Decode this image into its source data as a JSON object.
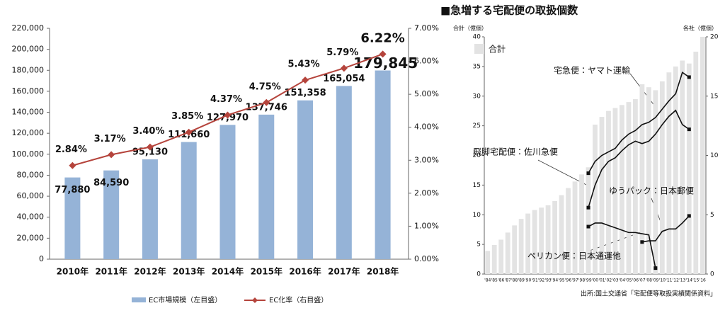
{
  "chart_data": [
    {
      "type": "bar",
      "categories": [
        "2010年",
        "2011年",
        "2012年",
        "2013年",
        "2014年",
        "2015年",
        "2016年",
        "2017年",
        "2018年"
      ],
      "series": [
        {
          "name": "EC市場規模（左目盛）",
          "color": "#95b3d7",
          "type": "bar",
          "values": [
            77880,
            84590,
            95130,
            111660,
            127970,
            137746,
            151358,
            165054,
            179845
          ],
          "value_labels": [
            "77,880",
            "84,590",
            "95,130",
            "111,660",
            "127,970",
            "137,746",
            "151,358",
            "165,054",
            "179,845"
          ]
        },
        {
          "name": "EC化率（右目盛）",
          "color": "#b5443c",
          "type": "line",
          "axis": "y2",
          "values": [
            2.84,
            3.17,
            3.4,
            3.85,
            4.37,
            4.75,
            5.43,
            5.79,
            6.22
          ],
          "value_labels": [
            "2.84%",
            "3.17%",
            "3.40%",
            "3.85%",
            "4.37%",
            "4.75%",
            "5.43%",
            "5.79%",
            "6.22%"
          ]
        }
      ],
      "ylim": [
        0,
        220000
      ],
      "yticks": [
        0,
        {
          "value": 20000,
          "label": "20,000"
        },
        {
          "value": 40000,
          "label": "40,000"
        },
        {
          "value": 60000,
          "label": "60,000"
        },
        {
          "value": 80000,
          "label": "80,000"
        },
        {
          "value": 100000,
          "label": "100,000"
        },
        {
          "value": 120000,
          "label": "120,000"
        },
        {
          "value": 140000,
          "label": "140,000"
        },
        {
          "value": 160000,
          "label": "160,000"
        },
        {
          "value": 180000,
          "label": "180,000"
        },
        {
          "value": 200000,
          "label": "200,000"
        },
        {
          "value": 220000,
          "label": "220,000"
        }
      ],
      "y2lim": [
        0,
        7
      ],
      "y2ticks": [
        {
          "value": 0,
          "label": "0.00%"
        },
        {
          "value": 1,
          "label": "1.00%"
        },
        {
          "value": 2,
          "label": "2.00%"
        },
        {
          "value": 3,
          "label": "3.00%"
        },
        {
          "value": 4,
          "label": "4.00%"
        },
        {
          "value": 5,
          "label": "5.00%"
        },
        {
          "value": 6,
          "label": "6.00%"
        },
        {
          "value": 7,
          "label": "7.00%"
        }
      ],
      "legend": "bottom",
      "grid": false
    },
    {
      "type": "bar",
      "title": "■急増する宅配便の取扱個数",
      "ylabel": "合計（億個）",
      "y2label": "各社（億個）",
      "source": "出所:国土交通省「宅配便等取扱実績関係資料」",
      "categories": [
        "'84",
        "'85",
        "'86",
        "'87",
        "'88",
        "'89",
        "'90",
        "'91",
        "'92",
        "'93",
        "'94",
        "'95",
        "'96",
        "'97",
        "'98",
        "'99",
        "'00",
        "'01",
        "'02",
        "'03",
        "'04",
        "'05",
        "'06",
        "'07",
        "'08",
        "'09",
        "'10",
        "'11",
        "'12",
        "'13",
        "'14",
        "'15",
        "'16"
      ],
      "series": [
        {
          "name": "合計",
          "color": "#e3e3e3",
          "type": "bar",
          "values": [
            3.9,
            4.9,
            5.8,
            7.0,
            8.2,
            9.3,
            10.2,
            10.8,
            11.2,
            11.6,
            12.3,
            13.3,
            14.5,
            15.6,
            16.8,
            18.0,
            25.2,
            26.5,
            27.5,
            28.0,
            28.5,
            29.0,
            29.5,
            32.0,
            31.5,
            31.0,
            32.5,
            34.0,
            35.0,
            36.0,
            35.5,
            37.5,
            40.0
          ]
        },
        {
          "name": "宅急便：ヤマト運輸",
          "color": "#111111",
          "type": "line",
          "axis": "y2",
          "values": [
            null,
            null,
            null,
            null,
            null,
            null,
            null,
            null,
            null,
            null,
            null,
            null,
            null,
            null,
            null,
            8.5,
            9.5,
            10.0,
            10.3,
            10.6,
            11.3,
            11.8,
            12.1,
            12.6,
            12.8,
            13.2,
            13.9,
            14.6,
            15.2,
            17.0,
            16.6,
            null,
            null
          ]
        },
        {
          "name": "飛脚宅配便：佐川急便",
          "color": "#111111",
          "type": "line",
          "axis": "y2",
          "values": [
            null,
            null,
            null,
            null,
            null,
            null,
            null,
            null,
            null,
            null,
            null,
            null,
            null,
            null,
            null,
            5.6,
            7.5,
            8.8,
            9.5,
            9.8,
            10.4,
            10.9,
            11.2,
            11.0,
            11.2,
            11.8,
            12.6,
            13.3,
            13.8,
            12.6,
            12.2,
            null,
            null
          ]
        },
        {
          "name": "ゆうパック：日本郵便",
          "color": "#111111",
          "type": "line",
          "axis": "y2",
          "values": [
            null,
            null,
            null,
            null,
            null,
            null,
            null,
            null,
            null,
            null,
            null,
            null,
            null,
            null,
            null,
            null,
            null,
            null,
            null,
            null,
            null,
            null,
            null,
            2.7,
            2.8,
            2.8,
            3.6,
            3.8,
            3.8,
            4.3,
            4.9,
            null,
            null
          ]
        },
        {
          "name": "ペリカン便：日本通運他",
          "color": "#111111",
          "type": "line",
          "axis": "y2",
          "values": [
            null,
            null,
            null,
            null,
            null,
            null,
            null,
            null,
            null,
            null,
            null,
            null,
            null,
            null,
            null,
            4.0,
            4.3,
            4.3,
            4.1,
            3.9,
            3.7,
            3.5,
            3.5,
            3.4,
            3.3,
            0.5,
            null,
            null,
            null,
            null,
            null,
            null,
            null
          ]
        }
      ],
      "ylim": [
        0,
        40
      ],
      "yticks": [
        0,
        5,
        10,
        15,
        20,
        25,
        30,
        35,
        40
      ],
      "y2lim": [
        0,
        20
      ],
      "y2ticks": [
        0,
        5,
        10,
        15,
        20
      ],
      "legend": "upper left",
      "grid": false
    }
  ]
}
